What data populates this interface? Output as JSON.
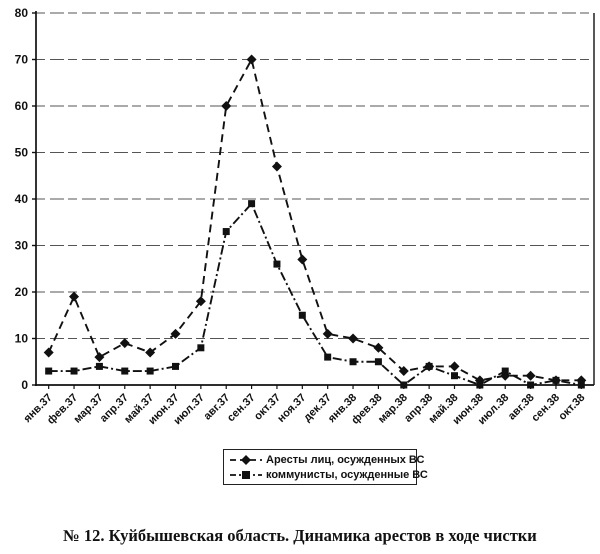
{
  "figure": {
    "caption": "№ 12. Куйбышевская область. Динамика арестов в ходе чистки"
  },
  "colors": {
    "ink": "#111111",
    "grid": "#555555",
    "background": "#ffffff"
  },
  "chart_data": {
    "type": "line",
    "title": "",
    "xlabel": "",
    "ylabel": "",
    "categories": [
      "янв.37",
      "фев.37",
      "мар.37",
      "апр.37",
      "май.37",
      "июн.37",
      "июл.37",
      "авг.37",
      "сен.37",
      "окт.37",
      "ноя.37",
      "дек.37",
      "янв.38",
      "фев.38",
      "мар.38",
      "апр.38",
      "май.38",
      "июн.38",
      "июл.38",
      "авг.38",
      "сен.38",
      "окт.38"
    ],
    "series": [
      {
        "name": "Аресты лиц, осужденных ВС",
        "marker": "diamond",
        "line_style": "dashed",
        "values": [
          7,
          19,
          6,
          9,
          7,
          11,
          18,
          60,
          70,
          47,
          27,
          11,
          10,
          8,
          3,
          4,
          4,
          1,
          2,
          2,
          1,
          1
        ]
      },
      {
        "name": "коммунисты, осужденные ВС",
        "marker": "square",
        "line_style": "dash-dot",
        "values": [
          3,
          3,
          4,
          3,
          3,
          4,
          8,
          33,
          39,
          26,
          15,
          6,
          5,
          5,
          0,
          4,
          2,
          0,
          3,
          0,
          1,
          0
        ]
      }
    ],
    "ylim": [
      0,
      80
    ],
    "yticks": [
      0,
      10,
      20,
      30,
      40,
      50,
      60,
      70,
      80
    ],
    "grid": true,
    "tick_label_rotation": 45,
    "legend_position": "bottom-center"
  }
}
